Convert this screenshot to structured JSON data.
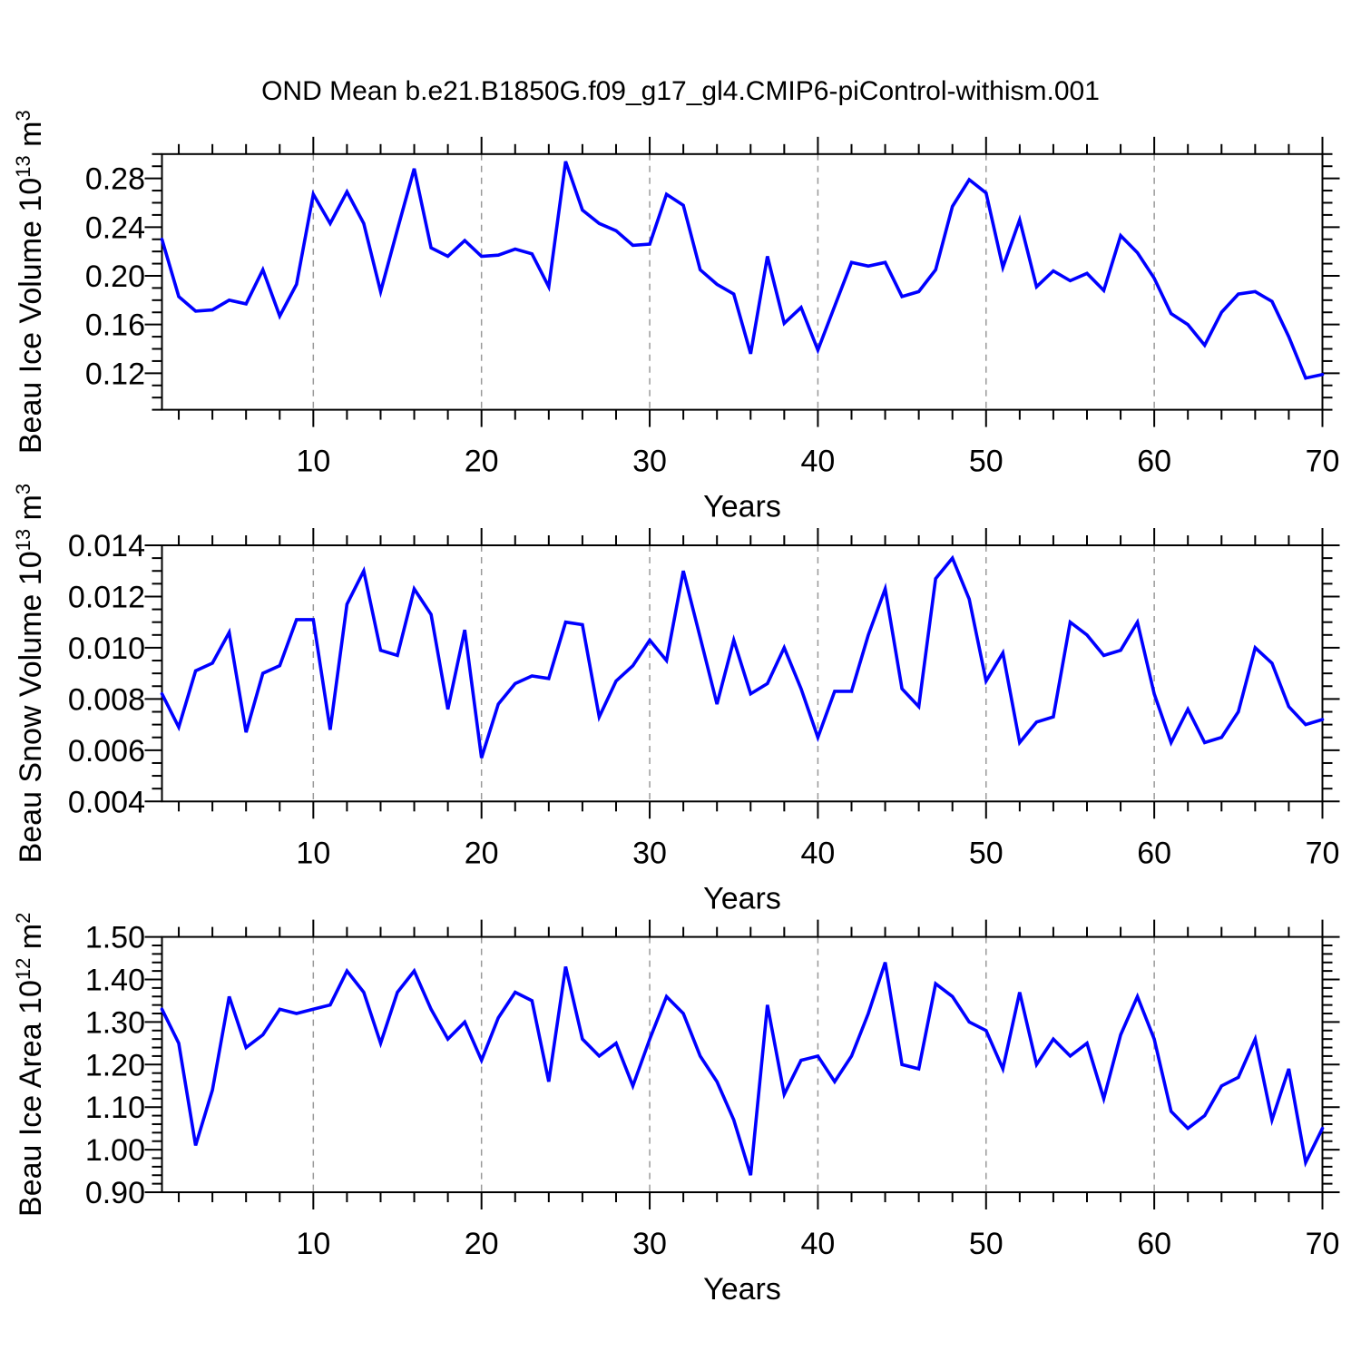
{
  "title": "OND Mean b.e21.B1850G.f09_g17_gl4.CMIP6-piControl-withism.001",
  "colors": {
    "line": "#0000ff",
    "axis": "#000000",
    "grid": "#999999",
    "background": "#ffffff",
    "text": "#000000"
  },
  "x_axis": {
    "label": "Years",
    "range": [
      1,
      70
    ],
    "x_start": 1,
    "x_step": 1,
    "major_ticks": [
      10,
      20,
      30,
      40,
      50,
      60,
      70
    ],
    "major_tick_labels": [
      "10",
      "20",
      "30",
      "40",
      "50",
      "60",
      "70"
    ],
    "minor_step": 2,
    "gridlines": [
      10,
      20,
      30,
      40,
      50,
      60
    ]
  },
  "chart_data": [
    {
      "type": "line",
      "name": "beau-ice-volume",
      "ylabel_prefix": "Beau Ice Volume 10",
      "ylabel_power": "13",
      "ylabel_unit": " m",
      "ylabel_unit_power": "3",
      "ylim": [
        0.09,
        0.3
      ],
      "yticks": [
        0.12,
        0.16,
        0.2,
        0.24,
        0.28
      ],
      "ytick_labels": [
        "0.12",
        "0.16",
        "0.20",
        "0.24",
        "0.28"
      ],
      "y_minor_step": 0.01,
      "values": [
        0.23,
        0.183,
        0.171,
        0.172,
        0.18,
        0.177,
        0.205,
        0.167,
        0.193,
        0.267,
        0.243,
        0.269,
        0.243,
        0.187,
        0.238,
        0.288,
        0.223,
        0.216,
        0.229,
        0.216,
        0.217,
        0.222,
        0.218,
        0.191,
        0.294,
        0.254,
        0.243,
        0.237,
        0.225,
        0.226,
        0.267,
        0.258,
        0.205,
        0.193,
        0.185,
        0.136,
        0.216,
        0.161,
        0.174,
        0.139,
        0.175,
        0.211,
        0.208,
        0.211,
        0.183,
        0.187,
        0.205,
        0.257,
        0.279,
        0.268,
        0.207,
        0.246,
        0.191,
        0.204,
        0.196,
        0.202,
        0.188,
        0.233,
        0.219,
        0.198,
        0.169,
        0.16,
        0.143,
        0.17,
        0.185,
        0.187,
        0.179,
        0.15,
        0.116,
        0.119
      ]
    },
    {
      "type": "line",
      "name": "beau-snow-volume",
      "ylabel_prefix": "Beau Snow Volume 10",
      "ylabel_power": "13",
      "ylabel_unit": " m",
      "ylabel_unit_power": "3",
      "ylim": [
        0.004,
        0.014
      ],
      "yticks": [
        0.004,
        0.006,
        0.008,
        0.01,
        0.012,
        0.014
      ],
      "ytick_labels": [
        "0.004",
        "0.006",
        "0.008",
        "0.010",
        "0.012",
        "0.014"
      ],
      "y_minor_step": 0.0005,
      "values": [
        0.0082,
        0.0069,
        0.0091,
        0.0094,
        0.0106,
        0.0067,
        0.009,
        0.0093,
        0.0111,
        0.0111,
        0.0068,
        0.0117,
        0.013,
        0.0099,
        0.0097,
        0.0123,
        0.0113,
        0.0076,
        0.0107,
        0.0057,
        0.0078,
        0.0086,
        0.0089,
        0.0088,
        0.011,
        0.0109,
        0.0073,
        0.0087,
        0.0093,
        0.0103,
        0.0095,
        0.013,
        0.0104,
        0.0078,
        0.0103,
        0.0082,
        0.0086,
        0.01,
        0.0084,
        0.0065,
        0.0083,
        0.0083,
        0.0105,
        0.0123,
        0.0084,
        0.0077,
        0.0127,
        0.0135,
        0.0119,
        0.0087,
        0.0098,
        0.0063,
        0.0071,
        0.0073,
        0.011,
        0.0105,
        0.0097,
        0.0099,
        0.011,
        0.0082,
        0.0063,
        0.0076,
        0.0063,
        0.0065,
        0.0075,
        0.01,
        0.0094,
        0.0077,
        0.007,
        0.0072
      ]
    },
    {
      "type": "line",
      "name": "beau-ice-area",
      "ylabel_prefix": "Beau Ice Area 10",
      "ylabel_power": "12",
      "ylabel_unit": " m",
      "ylabel_unit_power": "2",
      "ylim": [
        0.9,
        1.5
      ],
      "yticks": [
        0.9,
        1.0,
        1.1,
        1.2,
        1.3,
        1.4,
        1.5
      ],
      "ytick_labels": [
        "0.90",
        "1.00",
        "1.10",
        "1.20",
        "1.30",
        "1.40",
        "1.50"
      ],
      "y_minor_step": 0.02,
      "values": [
        1.33,
        1.25,
        1.01,
        1.14,
        1.36,
        1.24,
        1.27,
        1.33,
        1.32,
        1.33,
        1.34,
        1.42,
        1.37,
        1.25,
        1.37,
        1.42,
        1.33,
        1.26,
        1.3,
        1.21,
        1.31,
        1.37,
        1.35,
        1.16,
        1.43,
        1.26,
        1.22,
        1.25,
        1.15,
        1.26,
        1.36,
        1.32,
        1.22,
        1.16,
        1.07,
        0.94,
        1.34,
        1.13,
        1.21,
        1.22,
        1.16,
        1.22,
        1.32,
        1.44,
        1.2,
        1.19,
        1.39,
        1.36,
        1.3,
        1.28,
        1.19,
        1.37,
        1.2,
        1.26,
        1.22,
        1.25,
        1.12,
        1.27,
        1.36,
        1.26,
        1.09,
        1.05,
        1.08,
        1.15,
        1.17,
        1.26,
        1.07,
        1.19,
        0.97,
        1.05
      ]
    }
  ]
}
